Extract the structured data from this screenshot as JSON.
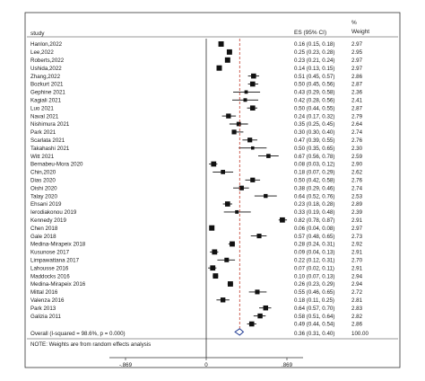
{
  "chart_data": {
    "type": "forest",
    "headers": {
      "study": "study",
      "es": "ES (95% CI)",
      "weight_pct": "%",
      "weight": "Weight"
    },
    "studies": [
      {
        "name": "Hanlon,2022",
        "es": 0.16,
        "lo": 0.15,
        "hi": 0.18,
        "es_text": "0.16 (0.15, 0.18)",
        "weight": "2.97"
      },
      {
        "name": "Lee,2022",
        "es": 0.25,
        "lo": 0.23,
        "hi": 0.28,
        "es_text": "0.25 (0.23, 0.28)",
        "weight": "2.95"
      },
      {
        "name": "Roberts,2022",
        "es": 0.23,
        "lo": 0.21,
        "hi": 0.24,
        "es_text": "0.23 (0.21, 0.24)",
        "weight": "2.97"
      },
      {
        "name": "Ushida,2022",
        "es": 0.14,
        "lo": 0.13,
        "hi": 0.15,
        "es_text": "0.14 (0.13, 0.15)",
        "weight": "2.97"
      },
      {
        "name": "Zhang,2022",
        "es": 0.51,
        "lo": 0.45,
        "hi": 0.57,
        "es_text": "0.51 (0.45, 0.57)",
        "weight": "2.86"
      },
      {
        "name": "Bozkurt 2021",
        "es": 0.5,
        "lo": 0.45,
        "hi": 0.56,
        "es_text": "0.50 (0.45, 0.56)",
        "weight": "2.87"
      },
      {
        "name": "Gephine 2021",
        "es": 0.43,
        "lo": 0.29,
        "hi": 0.58,
        "es_text": "0.43 (0.29, 0.58)",
        "weight": "2.36"
      },
      {
        "name": "Kagiali 2021",
        "es": 0.42,
        "lo": 0.28,
        "hi": 0.56,
        "es_text": "0.42 (0.28, 0.56)",
        "weight": "2.41"
      },
      {
        "name": "Luo 2021",
        "es": 0.5,
        "lo": 0.44,
        "hi": 0.55,
        "es_text": "0.50 (0.44, 0.55)",
        "weight": "2.87"
      },
      {
        "name": "Naval 2021",
        "es": 0.24,
        "lo": 0.17,
        "hi": 0.32,
        "es_text": "0.24 (0.17, 0.32)",
        "weight": "2.79"
      },
      {
        "name": "Nishimura 2021",
        "es": 0.35,
        "lo": 0.25,
        "hi": 0.45,
        "es_text": "0.35 (0.25, 0.45)",
        "weight": "2.64"
      },
      {
        "name": "Park 2021",
        "es": 0.3,
        "lo": 0.3,
        "hi": 0.4,
        "es_text": "0.30 (0.30, 0.40)",
        "weight": "2.74"
      },
      {
        "name": "Scarlata 2021",
        "es": 0.47,
        "lo": 0.39,
        "hi": 0.55,
        "es_text": "0.47 (0.39, 0.55)",
        "weight": "2.76"
      },
      {
        "name": "Takahashi 2021",
        "es": 0.5,
        "lo": 0.35,
        "hi": 0.65,
        "es_text": "0.50 (0.35, 0.65)",
        "weight": "2.30"
      },
      {
        "name": "Witt 2021",
        "es": 0.67,
        "lo": 0.56,
        "hi": 0.78,
        "es_text": "0.67 (0.56, 0.78)",
        "weight": "2.59"
      },
      {
        "name": "Bernabeu-Mora 2020",
        "es": 0.08,
        "lo": 0.03,
        "hi": 0.12,
        "es_text": "0.08 (0.03, 0.12)",
        "weight": "2.90"
      },
      {
        "name": "Chin,2020",
        "es": 0.18,
        "lo": 0.07,
        "hi": 0.29,
        "es_text": "0.18 (0.07, 0.29)",
        "weight": "2.62"
      },
      {
        "name": "Dias 2020",
        "es": 0.5,
        "lo": 0.42,
        "hi": 0.58,
        "es_text": "0.50 (0.42, 0.58)",
        "weight": "2.76"
      },
      {
        "name": "Oishi 2020",
        "es": 0.38,
        "lo": 0.29,
        "hi": 0.46,
        "es_text": "0.38 (0.29, 0.46)",
        "weight": "2.74"
      },
      {
        "name": "Talay 2020",
        "es": 0.64,
        "lo": 0.52,
        "hi": 0.76,
        "es_text": "0.64 (0.52, 0.76)",
        "weight": "2.53"
      },
      {
        "name": "Ehsani 2019",
        "es": 0.23,
        "lo": 0.18,
        "hi": 0.28,
        "es_text": "0.23 (0.18, 0.28)",
        "weight": "2.89"
      },
      {
        "name": "Ierodiakonou 2019",
        "es": 0.33,
        "lo": 0.19,
        "hi": 0.48,
        "es_text": "0.33 (0.19, 0.48)",
        "weight": "2.39"
      },
      {
        "name": "Kennedy 2019",
        "es": 0.82,
        "lo": 0.78,
        "hi": 0.87,
        "es_text": "0.82 (0.78, 0.87)",
        "weight": "2.91"
      },
      {
        "name": "Chen 2018",
        "es": 0.06,
        "lo": 0.04,
        "hi": 0.08,
        "es_text": "0.06 (0.04, 0.08)",
        "weight": "2.97"
      },
      {
        "name": "Gale 2018",
        "es": 0.57,
        "lo": 0.48,
        "hi": 0.65,
        "es_text": "0.57 (0.48, 0.65)",
        "weight": "2.73"
      },
      {
        "name": "Medina-Mirapeix 2018",
        "es": 0.28,
        "lo": 0.24,
        "hi": 0.31,
        "es_text": "0.28 (0.24, 0.31)",
        "weight": "2.92"
      },
      {
        "name": "Kusunose 2017",
        "es": 0.09,
        "lo": 0.04,
        "hi": 0.13,
        "es_text": "0.09 (0.04, 0.13)",
        "weight": "2.91"
      },
      {
        "name": "Limpawattana 2017",
        "es": 0.22,
        "lo": 0.12,
        "hi": 0.31,
        "es_text": "0.22 (0.12, 0.31)",
        "weight": "2.70"
      },
      {
        "name": "Lahousse 2016",
        "es": 0.07,
        "lo": 0.02,
        "hi": 0.11,
        "es_text": "0.07 (0.02, 0.11)",
        "weight": "2.91"
      },
      {
        "name": "Maddocks 2016",
        "es": 0.1,
        "lo": 0.07,
        "hi": 0.13,
        "es_text": "0.10 (0.07, 0.13)",
        "weight": "2.94"
      },
      {
        "name": "Medina-Mirapeix 2016",
        "es": 0.26,
        "lo": 0.23,
        "hi": 0.29,
        "es_text": "0.26 (0.23, 0.29)",
        "weight": "2.94"
      },
      {
        "name": "Mittal 2016",
        "es": 0.55,
        "lo": 0.46,
        "hi": 0.65,
        "es_text": "0.55 (0.46, 0.65)",
        "weight": "2.72"
      },
      {
        "name": "Valenza 2016",
        "es": 0.18,
        "lo": 0.11,
        "hi": 0.25,
        "es_text": "0.18 (0.11, 0.25)",
        "weight": "2.81"
      },
      {
        "name": "Park 2013",
        "es": 0.64,
        "lo": 0.57,
        "hi": 0.7,
        "es_text": "0.64 (0.57, 0.70)",
        "weight": "2.83"
      },
      {
        "name": "Galizia 2011",
        "es": 0.58,
        "lo": 0.51,
        "hi": 0.64,
        "es_text": "0.58 (0.51, 0.64)",
        "weight": "2.82"
      },
      {
        "name": "",
        "es": 0.49,
        "lo": 0.44,
        "hi": 0.54,
        "es_text": "0.49 (0.44, 0.54)",
        "weight": "2.86"
      }
    ],
    "overall": {
      "label": "Overall  (I-squared = 98.6%, p = 0.000)",
      "es": 0.36,
      "lo": 0.31,
      "hi": 0.4,
      "es_text": "0.36 (0.31, 0.40)",
      "weight": "100.00"
    },
    "note": "NOTE: Weights are from random effects analysis",
    "x_ticks": [
      {
        "value": -0.869,
        "label": "-.869"
      },
      {
        "value": 0,
        "label": "0"
      },
      {
        "value": 0.869,
        "label": ".869"
      }
    ],
    "xlim": [
      -0.869,
      0.869
    ],
    "null_line": 0,
    "colors": {
      "marker": "#111111",
      "overall_line": "#c0392b",
      "diamond": "#1f3a93",
      "frame": "#333333"
    }
  }
}
